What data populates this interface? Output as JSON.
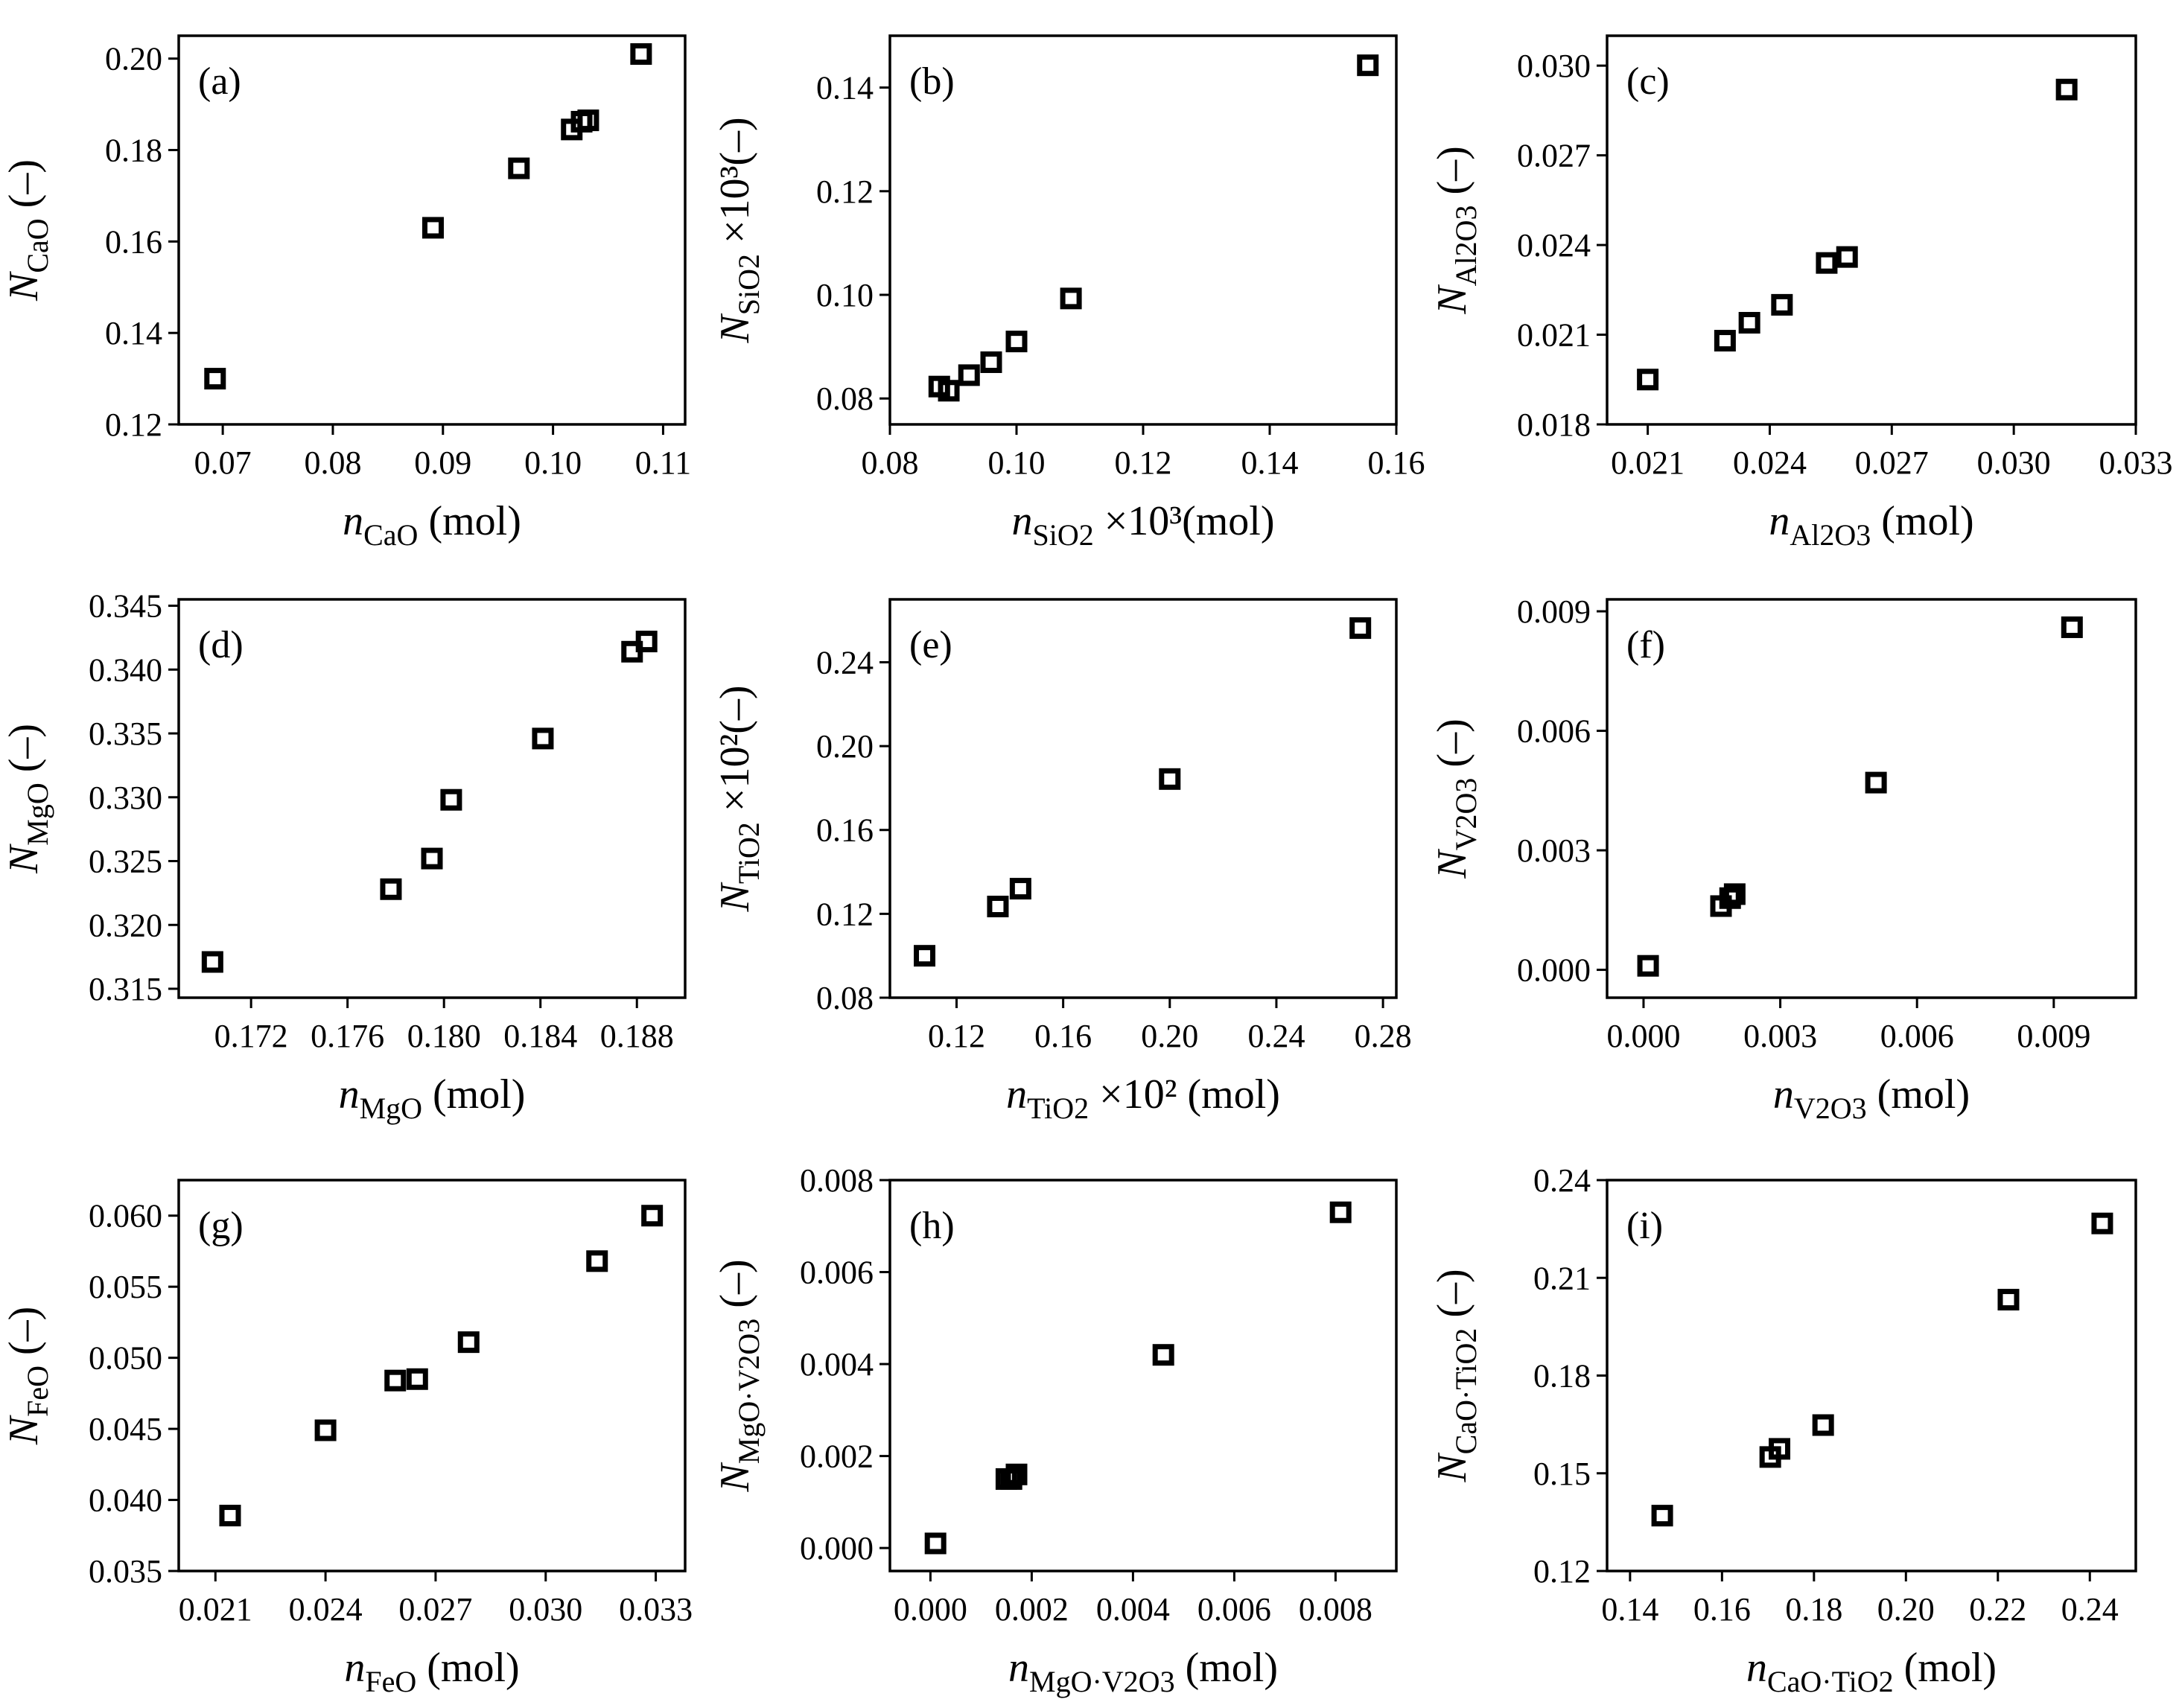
{
  "chart_data": [
    {
      "id": "a",
      "type": "scatter",
      "panel_label": "(a)",
      "xlabel": {
        "italic": "n",
        "sub": "CaO",
        "suffix": " (mol)"
      },
      "ylabel": {
        "italic": "N",
        "sub": "CaO",
        "suffix": " (–)"
      },
      "xlim": [
        0.066,
        0.112
      ],
      "ylim": [
        0.12,
        0.205
      ],
      "xticks": [
        "0.07",
        "0.08",
        "0.09",
        "0.10",
        "0.11"
      ],
      "yticks": [
        "0.12",
        "0.14",
        "0.16",
        "0.18",
        "0.20"
      ],
      "x": [
        0.0693,
        0.0891,
        0.0969,
        0.1017,
        0.1026,
        0.1032,
        0.108
      ],
      "y": [
        0.13,
        0.163,
        0.176,
        0.1845,
        0.1862,
        0.1865,
        0.201
      ]
    },
    {
      "id": "b",
      "type": "scatter",
      "panel_label": "(b)",
      "xlabel": {
        "italic": "n",
        "sub": "SiO2",
        "suffix": " ×10³(mol)"
      },
      "ylabel": {
        "italic": "N",
        "sub": "SiO2",
        "suffix": " ×10³(–)"
      },
      "xlim": [
        0.08,
        0.16
      ],
      "ylim": [
        0.075,
        0.15
      ],
      "xticks": [
        "0.08",
        "0.10",
        "0.12",
        "0.14",
        "0.16"
      ],
      "yticks": [
        "0.08",
        "0.10",
        "0.12",
        "0.14"
      ],
      "x": [
        0.0878,
        0.0893,
        0.0925,
        0.096,
        0.1,
        0.1086,
        0.1555
      ],
      "y": [
        0.0823,
        0.0815,
        0.0845,
        0.087,
        0.091,
        0.0993,
        0.1443
      ]
    },
    {
      "id": "c",
      "type": "scatter",
      "panel_label": "(c)",
      "xlabel": {
        "italic": "n",
        "sub": "Al2O3",
        "suffix": " (mol)"
      },
      "ylabel": {
        "italic": "N",
        "sub": "Al2O3",
        "suffix": " (–)"
      },
      "xlim": [
        0.02,
        0.033
      ],
      "ylim": [
        0.018,
        0.031
      ],
      "xticks": [
        "0.021",
        "0.024",
        "0.027",
        "0.030",
        "0.033"
      ],
      "yticks": [
        "0.018",
        "0.021",
        "0.024",
        "0.027",
        "0.030"
      ],
      "x": [
        0.021,
        0.0229,
        0.0235,
        0.0243,
        0.0254,
        0.0259,
        0.0313
      ],
      "y": [
        0.0195,
        0.0208,
        0.0214,
        0.022,
        0.0234,
        0.0236,
        0.0292
      ]
    },
    {
      "id": "d",
      "type": "scatter",
      "panel_label": "(d)",
      "xlabel": {
        "italic": "n",
        "sub": "MgO",
        "suffix": " (mol)"
      },
      "ylabel": {
        "italic": "N",
        "sub": "MgO",
        "suffix": " (–)"
      },
      "xlim": [
        0.169,
        0.19
      ],
      "ylim": [
        0.3143,
        0.3455
      ],
      "xticks": [
        "0.172",
        "0.176",
        "0.180",
        "0.184",
        "0.188"
      ],
      "yticks": [
        "0.315",
        "0.320",
        "0.325",
        "0.330",
        "0.335",
        "0.340",
        "0.345"
      ],
      "x": [
        0.1704,
        0.1778,
        0.1795,
        0.1803,
        0.1841,
        0.1878,
        0.1884
      ],
      "y": [
        0.3171,
        0.3228,
        0.3252,
        0.3298,
        0.3346,
        0.3414,
        0.3422
      ]
    },
    {
      "id": "e",
      "type": "scatter",
      "panel_label": "(e)",
      "xlabel": {
        "italic": "n",
        "sub": "TiO2",
        "suffix": " ×10² (mol)"
      },
      "ylabel": {
        "italic": "N",
        "sub": "TiO2",
        "suffix": " ×10²(–)"
      },
      "xlim": [
        0.095,
        0.285
      ],
      "ylim": [
        0.08,
        0.27
      ],
      "xticks": [
        "0.12",
        "0.16",
        "0.20",
        "0.24",
        "0.28"
      ],
      "yticks": [
        "0.08",
        "0.12",
        "0.16",
        "0.20",
        "0.24"
      ],
      "x": [
        0.108,
        0.1355,
        0.144,
        0.2,
        0.2715
      ],
      "y": [
        0.1,
        0.1235,
        0.132,
        0.1843,
        0.2563
      ]
    },
    {
      "id": "f",
      "type": "scatter",
      "panel_label": "(f)",
      "xlabel": {
        "italic": "n",
        "sub": "V2O3",
        "suffix": " (mol)"
      },
      "ylabel": {
        "italic": "N",
        "sub": "V2O3",
        "suffix": " (–)"
      },
      "xlim": [
        -0.0008,
        0.0108
      ],
      "ylim": [
        -0.0007,
        0.0093
      ],
      "xticks": [
        "0.000",
        "0.003",
        "0.006",
        "0.009"
      ],
      "yticks": [
        "0.000",
        "0.003",
        "0.006",
        "0.009"
      ],
      "x": [
        0.0001,
        0.0017,
        0.0019,
        0.002,
        0.0051,
        0.0094
      ],
      "y": [
        0.0001,
        0.0016,
        0.0018,
        0.0019,
        0.0047,
        0.0086
      ]
    },
    {
      "id": "g",
      "type": "scatter",
      "panel_label": "(g)",
      "xlabel": {
        "italic": "n",
        "sub": "FeO",
        "suffix": " (mol)"
      },
      "ylabel": {
        "italic": "N",
        "sub": "FeO",
        "suffix": " (–)"
      },
      "xlim": [
        0.02,
        0.0338
      ],
      "ylim": [
        0.035,
        0.0625
      ],
      "xticks": [
        "0.021",
        "0.024",
        "0.027",
        "0.030",
        "0.033"
      ],
      "yticks": [
        "0.035",
        "0.040",
        "0.045",
        "0.050",
        "0.055",
        "0.060"
      ],
      "x": [
        0.0214,
        0.024,
        0.0259,
        0.0265,
        0.0279,
        0.0314,
        0.0329
      ],
      "y": [
        0.0389,
        0.0449,
        0.0484,
        0.0485,
        0.0511,
        0.0568,
        0.06
      ]
    },
    {
      "id": "h",
      "type": "scatter",
      "panel_label": "(h)",
      "xlabel": {
        "italic": "n",
        "sub": "MgO·V2O3",
        "suffix": " (mol)"
      },
      "ylabel": {
        "italic": "N",
        "sub": "MgO·V2O3",
        "suffix": " (–)"
      },
      "xlim": [
        -0.0008,
        0.0092
      ],
      "ylim": [
        -0.0005,
        0.008
      ],
      "xticks": [
        "0.000",
        "0.002",
        "0.004",
        "0.006",
        "0.008"
      ],
      "yticks": [
        "0.000",
        "0.002",
        "0.004",
        "0.006",
        "0.008"
      ],
      "x": [
        0.0001,
        0.0015,
        0.0016,
        0.0017,
        0.0046,
        0.0081
      ],
      "y": [
        0.0001,
        0.0015,
        0.0015,
        0.0016,
        0.0042,
        0.0073
      ]
    },
    {
      "id": "i",
      "type": "scatter",
      "panel_label": "(i)",
      "xlabel": {
        "italic": "n",
        "sub": "CaO·TiO2",
        "suffix": " (mol)"
      },
      "ylabel": {
        "italic": "N",
        "sub": "CaO·TiO2",
        "suffix": " (–)"
      },
      "xlim": [
        0.135,
        0.25
      ],
      "ylim": [
        0.12,
        0.24
      ],
      "xticks": [
        "0.14",
        "0.16",
        "0.18",
        "0.20",
        "0.22",
        "0.24"
      ],
      "yticks": [
        "0.12",
        "0.15",
        "0.18",
        "0.21",
        "0.24"
      ],
      "x": [
        0.147,
        0.1705,
        0.1725,
        0.182,
        0.2223,
        0.2427
      ],
      "y": [
        0.137,
        0.155,
        0.1575,
        0.1648,
        0.2033,
        0.2267
      ]
    }
  ]
}
